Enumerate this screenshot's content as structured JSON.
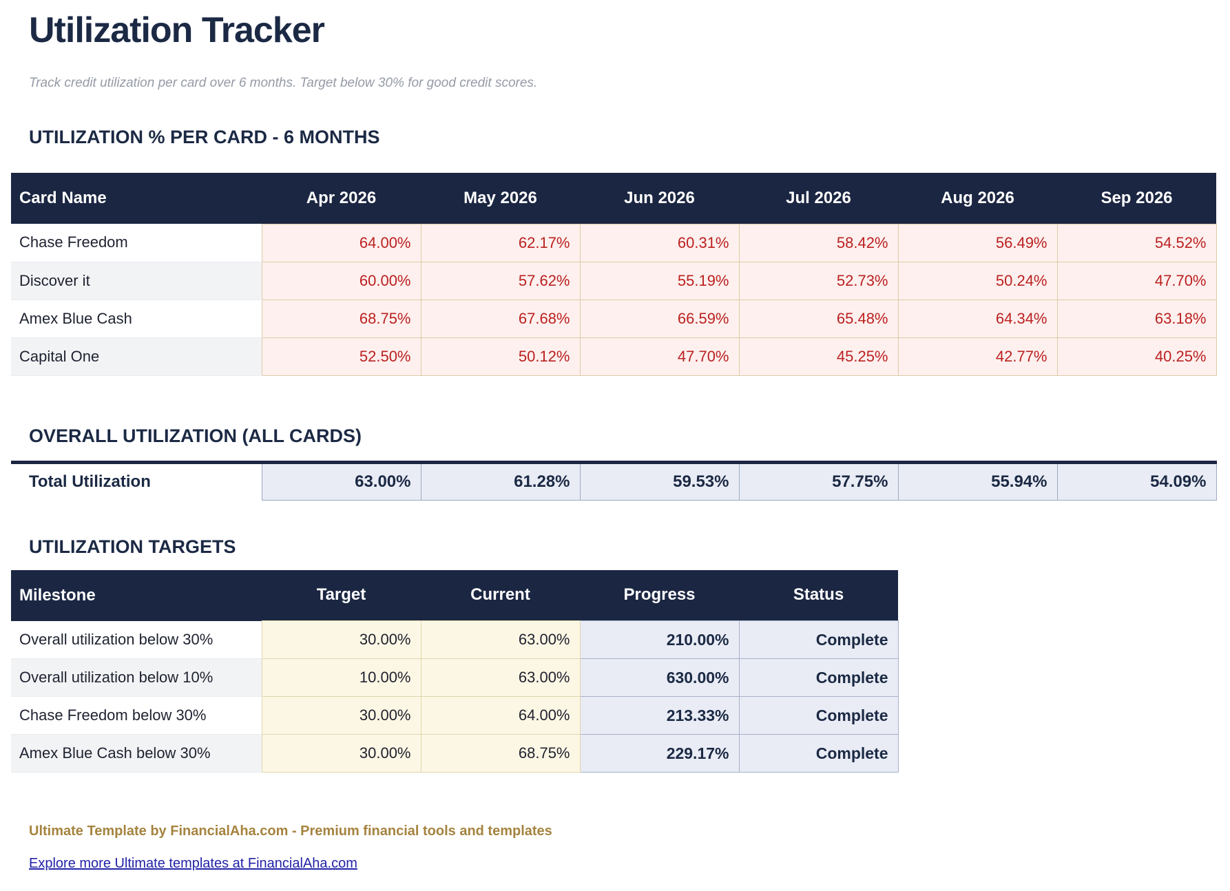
{
  "page": {
    "title": "Utilization Tracker",
    "subtitle": "Track credit utilization per card over 6 months. Target below 30% for good credit scores."
  },
  "cards_section": {
    "heading": "UTILIZATION % PER CARD - 6 MONTHS",
    "columns": [
      "Card Name",
      "Apr 2026",
      "May 2026",
      "Jun 2026",
      "Jul 2026",
      "Aug 2026",
      "Sep 2026"
    ],
    "rows": [
      {
        "name": "Chase Freedom",
        "values": [
          "64.00%",
          "62.17%",
          "60.31%",
          "58.42%",
          "56.49%",
          "54.52%"
        ]
      },
      {
        "name": "Discover it",
        "values": [
          "60.00%",
          "57.62%",
          "55.19%",
          "52.73%",
          "50.24%",
          "47.70%"
        ]
      },
      {
        "name": "Amex Blue Cash",
        "values": [
          "68.75%",
          "67.68%",
          "66.59%",
          "65.48%",
          "64.34%",
          "63.18%"
        ]
      },
      {
        "name": "Capital One",
        "values": [
          "52.50%",
          "50.12%",
          "47.70%",
          "45.25%",
          "42.77%",
          "40.25%"
        ]
      }
    ]
  },
  "overall_section": {
    "heading": "OVERALL UTILIZATION (ALL CARDS)",
    "row_label": "Total Utilization",
    "values": [
      "63.00%",
      "61.28%",
      "59.53%",
      "57.75%",
      "55.94%",
      "54.09%"
    ]
  },
  "targets_section": {
    "heading": "UTILIZATION TARGETS",
    "columns": [
      "Milestone",
      "Target",
      "Current",
      "Progress",
      "Status"
    ],
    "rows": [
      {
        "milestone": "Overall utilization below 30%",
        "target": "30.00%",
        "current": "63.00%",
        "progress": "210.00%",
        "status": "Complete"
      },
      {
        "milestone": "Overall utilization below 10%",
        "target": "10.00%",
        "current": "63.00%",
        "progress": "630.00%",
        "status": "Complete"
      },
      {
        "milestone": "Chase Freedom below 30%",
        "target": "30.00%",
        "current": "64.00%",
        "progress": "213.33%",
        "status": "Complete"
      },
      {
        "milestone": "Amex Blue Cash below 30%",
        "target": "30.00%",
        "current": "68.75%",
        "progress": "229.17%",
        "status": "Complete"
      }
    ]
  },
  "footer": {
    "branding": "Ultimate Template by FinancialAha.com - Premium financial tools and templates",
    "link": "Explore more Ultimate templates at FinancialAha.com"
  },
  "colors": {
    "header_navy": "#1b2642",
    "title_navy": "#1b2944",
    "alert_red_text": "#bb2020",
    "alert_red_bg": "#fdf0ee",
    "tan_border": "#ddcba6",
    "highlight_blue_bg": "#e9ecf5",
    "target_cream_bg": "#fcf7e5",
    "brand_gold": "#a5833f",
    "link_blue": "#2222a8"
  }
}
